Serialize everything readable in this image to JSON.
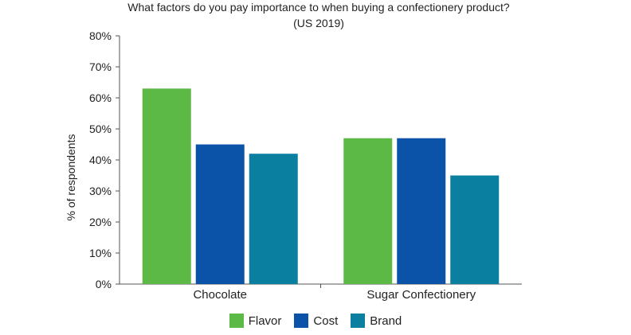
{
  "chart_data": {
    "type": "bar",
    "title": "What factors do you pay importance to when buying a confectionery product?",
    "subtitle": "(US 2019)",
    "xlabel": "",
    "ylabel": "% of respondents",
    "ylim": [
      0,
      80
    ],
    "yticks": [
      "0%",
      "10%",
      "20%",
      "30%",
      "40%",
      "50%",
      "60%",
      "70%",
      "80%"
    ],
    "categories": [
      "Chocolate",
      "Sugar Confectionery"
    ],
    "series": [
      {
        "name": "Flavor",
        "color": "#5cb946",
        "values": [
          63,
          47
        ]
      },
      {
        "name": "Cost",
        "color": "#0b53a8",
        "values": [
          45,
          47
        ]
      },
      {
        "name": "Brand",
        "color": "#0b7fa0",
        "values": [
          42,
          35
        ]
      }
    ],
    "legend_position": "bottom"
  }
}
